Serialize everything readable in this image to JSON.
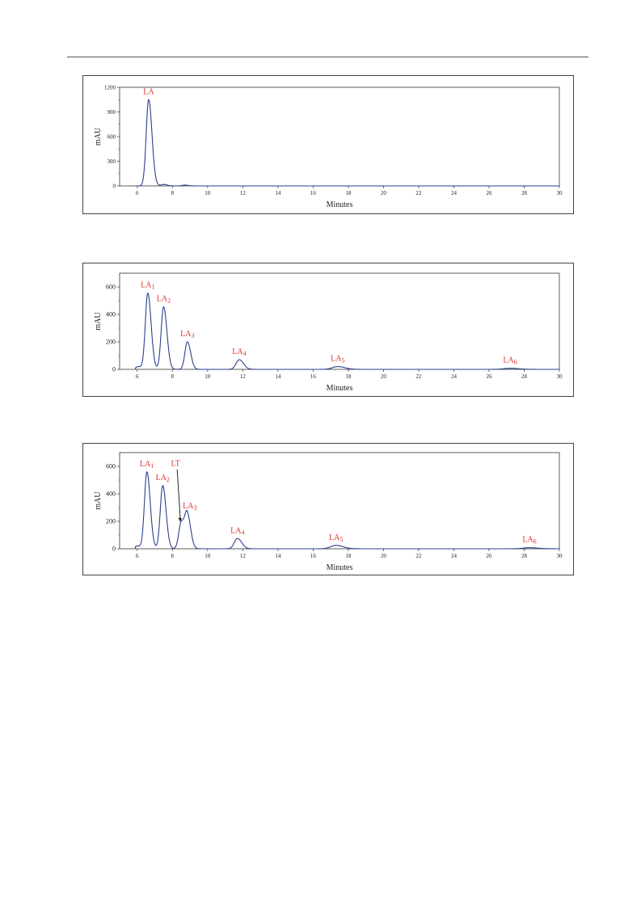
{
  "chart_data": [
    {
      "type": "line",
      "title": "",
      "xlabel": "Minutes",
      "ylabel": "mAU",
      "xlim": [
        5,
        30
      ],
      "ylim": [
        0,
        1200
      ],
      "xticks": [
        6,
        8,
        10,
        12,
        14,
        16,
        18,
        20,
        22,
        24,
        26,
        28,
        30
      ],
      "yticks": [
        0,
        300,
        600,
        900,
        1200
      ],
      "grid": false,
      "line_color": "#2b3f8f",
      "annotation_color": "#e0312b",
      "peaks": [
        {
          "label": "LA",
          "sub": "",
          "x": 6.65,
          "y": 1050
        }
      ],
      "minor_peaks": [
        {
          "x": 7.5,
          "y": 18
        },
        {
          "x": 8.7,
          "y": 10
        }
      ]
    },
    {
      "type": "line",
      "title": "",
      "xlabel": "Minutes",
      "ylabel": "mAU",
      "xlim": [
        5,
        30
      ],
      "ylim": [
        0,
        700
      ],
      "xticks": [
        6,
        8,
        10,
        12,
        14,
        16,
        18,
        20,
        22,
        24,
        26,
        28,
        30
      ],
      "yticks": [
        0,
        200,
        400,
        600
      ],
      "grid": false,
      "line_color": "#2b3f8f",
      "annotation_color": "#e0312b",
      "peaks": [
        {
          "label": "LA",
          "sub": "1",
          "x": 6.6,
          "y": 555
        },
        {
          "label": "LA",
          "sub": "2",
          "x": 7.5,
          "y": 455
        },
        {
          "label": "LA",
          "sub": "3",
          "x": 8.85,
          "y": 200
        },
        {
          "label": "LA",
          "sub": "4",
          "x": 11.8,
          "y": 70
        },
        {
          "label": "LA",
          "sub": "5",
          "x": 17.4,
          "y": 20
        },
        {
          "label": "LA",
          "sub": "6",
          "x": 27.2,
          "y": 8
        }
      ],
      "minor_peaks": [
        {
          "x": 6.05,
          "y": 20
        }
      ]
    },
    {
      "type": "line",
      "title": "",
      "xlabel": "Minutes",
      "ylabel": "mAU",
      "xlim": [
        5,
        30
      ],
      "ylim": [
        0,
        700
      ],
      "xticks": [
        6,
        8,
        10,
        12,
        14,
        16,
        18,
        20,
        22,
        24,
        26,
        28,
        30
      ],
      "yticks": [
        0,
        200,
        400,
        600
      ],
      "grid": false,
      "line_color": "#2b3f8f",
      "annotation_color": "#e0312b",
      "peaks": [
        {
          "label": "LA",
          "sub": "1",
          "x": 6.55,
          "y": 560
        },
        {
          "label": "LA",
          "sub": "2",
          "x": 7.45,
          "y": 460
        },
        {
          "label": "LT",
          "sub": "",
          "x": 8.5,
          "y": 190
        },
        {
          "label": "LA",
          "sub": "3",
          "x": 8.85,
          "y": 240
        },
        {
          "label": "LA",
          "sub": "4",
          "x": 11.7,
          "y": 75
        },
        {
          "label": "LA",
          "sub": "5",
          "x": 17.3,
          "y": 25
        },
        {
          "label": "LA",
          "sub": "6",
          "x": 28.3,
          "y": 8
        }
      ],
      "minor_peaks": [
        {
          "x": 6.0,
          "y": 20
        }
      ]
    }
  ]
}
